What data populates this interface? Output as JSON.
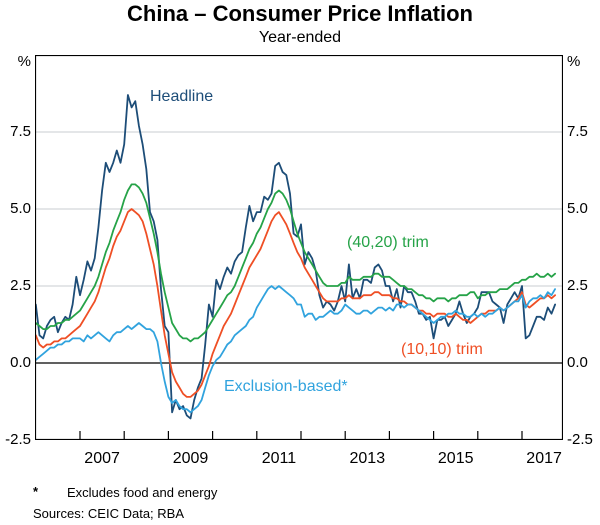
{
  "title": "China – Consumer Price Inflation",
  "subtitle": "Year-ended",
  "y_axis": {
    "unit": "%",
    "tick_values": [
      7.5,
      5.0,
      2.5,
      0.0,
      -2.5
    ],
    "tick_labels": [
      "7.5",
      "5.0",
      "2.5",
      "0.0",
      "-2.5"
    ]
  },
  "x_axis": {
    "label_years": [
      2007,
      2009,
      2011,
      2013,
      2015,
      2017
    ],
    "labels": [
      "2007",
      "2009",
      "2011",
      "2013",
      "2015",
      "2017"
    ]
  },
  "footnote": {
    "marker": "*",
    "text": "Excludes food and energy"
  },
  "sources": "Sources: CEIC Data; RBA",
  "chart_data": {
    "type": "line",
    "title": "China – Consumer Price Inflation",
    "subtitle": "Year-ended",
    "ylabel": "%",
    "ylim": [
      -2.5,
      10
    ],
    "xlim": [
      2006.0,
      2017.93
    ],
    "gridlines": [
      2.5,
      5.0,
      7.5
    ],
    "zero_line": true,
    "x_start_year": 2006,
    "x_step_months": 1,
    "series": [
      {
        "name": "Headline",
        "color": "#1d4d78",
        "values": [
          1.9,
          0.9,
          0.8,
          1.2,
          1.4,
          1.5,
          1.0,
          1.3,
          1.5,
          1.4,
          1.9,
          2.8,
          2.2,
          2.7,
          3.3,
          3.0,
          3.4,
          4.4,
          5.6,
          6.5,
          6.2,
          6.5,
          6.9,
          6.5,
          7.1,
          8.7,
          8.3,
          8.5,
          7.7,
          7.1,
          6.3,
          4.9,
          4.6,
          4.0,
          2.4,
          1.2,
          1.0,
          -1.6,
          -1.2,
          -1.5,
          -1.4,
          -1.7,
          -1.8,
          -1.2,
          -0.8,
          -0.5,
          0.6,
          1.9,
          1.5,
          2.7,
          2.4,
          2.8,
          3.1,
          2.9,
          3.3,
          3.5,
          3.6,
          4.4,
          5.1,
          4.6,
          4.9,
          4.9,
          5.4,
          5.3,
          5.5,
          6.4,
          6.5,
          6.2,
          6.1,
          5.5,
          4.2,
          4.1,
          4.5,
          3.2,
          3.6,
          3.4,
          3.0,
          2.2,
          1.8,
          2.0,
          1.9,
          1.7,
          2.0,
          2.5,
          2.0,
          3.2,
          2.1,
          2.4,
          2.1,
          2.7,
          2.7,
          2.6,
          3.1,
          3.2,
          3.0,
          2.5,
          2.5,
          2.0,
          2.4,
          1.8,
          2.5,
          2.3,
          2.3,
          2.0,
          1.6,
          1.6,
          1.4,
          1.5,
          0.8,
          1.4,
          1.4,
          1.5,
          1.2,
          1.4,
          1.6,
          2.0,
          1.6,
          1.3,
          1.5,
          1.6,
          1.8,
          2.3,
          2.3,
          2.3,
          2.0,
          1.9,
          1.8,
          1.3,
          1.9,
          2.1,
          2.3,
          2.1,
          2.5,
          0.8,
          0.9,
          1.2,
          1.5,
          1.5,
          1.4,
          1.8,
          1.6,
          1.9
        ]
      },
      {
        "name": "(40,20) trim",
        "color": "#26a348",
        "values": [
          1.3,
          1.2,
          1.1,
          1.1,
          1.2,
          1.2,
          1.3,
          1.3,
          1.4,
          1.4,
          1.5,
          1.6,
          1.7,
          1.9,
          2.1,
          2.3,
          2.5,
          2.8,
          3.2,
          3.6,
          3.9,
          4.3,
          4.6,
          4.9,
          5.3,
          5.6,
          5.8,
          5.8,
          5.7,
          5.5,
          5.2,
          4.7,
          4.2,
          3.6,
          2.9,
          2.3,
          1.8,
          1.3,
          1.1,
          0.9,
          0.8,
          0.8,
          0.7,
          0.8,
          0.8,
          0.9,
          1.0,
          1.2,
          1.4,
          1.6,
          1.8,
          2.0,
          2.2,
          2.3,
          2.5,
          2.8,
          3.1,
          3.4,
          3.7,
          3.9,
          4.2,
          4.4,
          4.7,
          5.0,
          5.2,
          5.5,
          5.6,
          5.5,
          5.3,
          5.0,
          4.6,
          4.2,
          3.9,
          3.6,
          3.4,
          3.2,
          3.0,
          2.8,
          2.6,
          2.5,
          2.5,
          2.5,
          2.5,
          2.6,
          2.6,
          2.8,
          2.7,
          2.7,
          2.7,
          2.8,
          2.8,
          2.8,
          2.9,
          2.9,
          2.8,
          2.8,
          2.8,
          2.7,
          2.6,
          2.5,
          2.5,
          2.4,
          2.4,
          2.3,
          2.2,
          2.2,
          2.1,
          2.1,
          2.0,
          2.1,
          2.1,
          2.1,
          2.0,
          2.1,
          2.1,
          2.2,
          2.2,
          2.2,
          2.3,
          2.3,
          2.1,
          2.2,
          2.2,
          2.3,
          2.3,
          2.3,
          2.4,
          2.4,
          2.4,
          2.5,
          2.6,
          2.6,
          2.7,
          2.7,
          2.8,
          2.8,
          2.9,
          2.8,
          2.8,
          2.9,
          2.8,
          2.9
        ]
      },
      {
        "name": "(10,10) trim",
        "color": "#ef4f25",
        "values": [
          0.9,
          0.6,
          0.5,
          0.6,
          0.6,
          0.7,
          0.7,
          0.8,
          0.8,
          0.9,
          1.0,
          1.1,
          1.2,
          1.4,
          1.6,
          1.8,
          2.0,
          2.3,
          2.7,
          3.1,
          3.4,
          3.8,
          4.1,
          4.3,
          4.6,
          4.9,
          5.0,
          4.9,
          4.8,
          4.6,
          4.2,
          3.7,
          3.2,
          2.5,
          1.7,
          0.9,
          0.3,
          -0.3,
          -0.6,
          -0.8,
          -1.0,
          -1.1,
          -1.1,
          -1.0,
          -0.9,
          -0.7,
          -0.4,
          -0.1,
          0.3,
          0.6,
          0.9,
          1.2,
          1.4,
          1.6,
          1.9,
          2.2,
          2.5,
          2.8,
          3.1,
          3.3,
          3.5,
          3.7,
          4.0,
          4.3,
          4.6,
          4.8,
          4.9,
          4.7,
          4.5,
          4.2,
          3.9,
          3.6,
          3.4,
          3.1,
          2.9,
          2.7,
          2.5,
          2.3,
          2.1,
          2.0,
          2.0,
          2.0,
          2.0,
          2.1,
          2.1,
          2.2,
          2.1,
          2.1,
          2.1,
          2.2,
          2.2,
          2.2,
          2.3,
          2.3,
          2.2,
          2.2,
          2.2,
          2.1,
          2.1,
          2.0,
          2.0,
          1.9,
          1.9,
          1.8,
          1.7,
          1.7,
          1.6,
          1.6,
          1.5,
          1.6,
          1.6,
          1.6,
          1.5,
          1.5,
          1.6,
          1.5,
          1.4,
          1.4,
          1.3,
          1.4,
          1.5,
          1.6,
          1.6,
          1.7,
          1.7,
          1.7,
          1.8,
          1.7,
          1.8,
          1.9,
          2.0,
          2.1,
          2.3,
          1.9,
          1.8,
          1.9,
          2.0,
          2.1,
          2.1,
          2.2,
          2.1,
          2.2
        ]
      },
      {
        "name": "Exclusion-based*",
        "color": "#31a3de",
        "values": [
          0.1,
          0.2,
          0.3,
          0.4,
          0.5,
          0.5,
          0.6,
          0.6,
          0.7,
          0.7,
          0.8,
          0.8,
          0.8,
          0.7,
          0.9,
          0.8,
          0.9,
          1.0,
          0.9,
          0.8,
          0.7,
          0.9,
          1.0,
          1.0,
          1.1,
          1.2,
          1.1,
          1.2,
          1.3,
          1.2,
          1.1,
          1.1,
          1.0,
          0.7,
          0.0,
          -0.6,
          -1.1,
          -1.3,
          -1.2,
          -1.4,
          -1.5,
          -1.5,
          -1.6,
          -1.5,
          -1.4,
          -1.2,
          -0.8,
          -0.4,
          -0.1,
          0.1,
          0.2,
          0.4,
          0.6,
          0.7,
          0.9,
          1.0,
          1.1,
          1.2,
          1.4,
          1.5,
          1.8,
          2.0,
          2.2,
          2.4,
          2.5,
          2.4,
          2.5,
          2.4,
          2.3,
          2.2,
          2.1,
          1.9,
          1.9,
          1.5,
          1.6,
          1.6,
          1.4,
          1.5,
          1.5,
          1.6,
          1.7,
          1.6,
          1.6,
          1.7,
          1.9,
          1.8,
          1.7,
          1.6,
          1.6,
          1.7,
          1.7,
          1.6,
          1.7,
          1.8,
          1.8,
          1.7,
          1.8,
          1.7,
          1.9,
          1.9,
          1.8,
          1.9,
          1.9,
          1.8,
          1.7,
          1.6,
          1.5,
          1.4,
          1.3,
          1.4,
          1.5,
          1.5,
          1.6,
          1.6,
          1.7,
          1.6,
          1.6,
          1.5,
          1.5,
          1.6,
          1.5,
          1.6,
          1.5,
          1.6,
          1.6,
          1.7,
          1.8,
          1.7,
          1.8,
          1.9,
          2.0,
          2.0,
          2.2,
          1.8,
          2.0,
          2.1,
          2.1,
          2.2,
          2.1,
          2.3,
          2.2,
          2.4
        ]
      }
    ],
    "series_label_annotations": [
      "Headline",
      "(40,20) trim",
      "(10,10) trim",
      "Exclusion-based*"
    ]
  },
  "colors": {
    "frame": "#000000",
    "gridline": "#c9cdd0",
    "zero_line": "#000000"
  }
}
